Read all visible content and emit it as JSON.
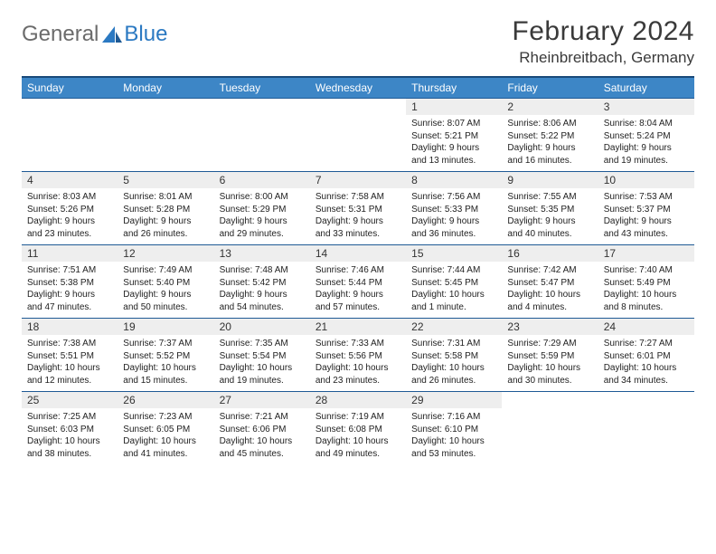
{
  "logo": {
    "general": "General",
    "blue": "Blue"
  },
  "title": "February 2024",
  "location": "Rheinbreitbach, Germany",
  "colors": {
    "header_bar": "#3d86c6",
    "header_top_border": "#194a7a",
    "row_border": "#1f5a95",
    "daynum_bg": "#eeeeee",
    "logo_gray": "#6b6b6b",
    "logo_blue": "#2b79c2"
  },
  "weekdays": [
    "Sunday",
    "Monday",
    "Tuesday",
    "Wednesday",
    "Thursday",
    "Friday",
    "Saturday"
  ],
  "weeks": [
    [
      {
        "n": "",
        "sr": "",
        "ss": "",
        "dl": ""
      },
      {
        "n": "",
        "sr": "",
        "ss": "",
        "dl": ""
      },
      {
        "n": "",
        "sr": "",
        "ss": "",
        "dl": ""
      },
      {
        "n": "",
        "sr": "",
        "ss": "",
        "dl": ""
      },
      {
        "n": "1",
        "sr": "Sunrise: 8:07 AM",
        "ss": "Sunset: 5:21 PM",
        "dl": "Daylight: 9 hours and 13 minutes."
      },
      {
        "n": "2",
        "sr": "Sunrise: 8:06 AM",
        "ss": "Sunset: 5:22 PM",
        "dl": "Daylight: 9 hours and 16 minutes."
      },
      {
        "n": "3",
        "sr": "Sunrise: 8:04 AM",
        "ss": "Sunset: 5:24 PM",
        "dl": "Daylight: 9 hours and 19 minutes."
      }
    ],
    [
      {
        "n": "4",
        "sr": "Sunrise: 8:03 AM",
        "ss": "Sunset: 5:26 PM",
        "dl": "Daylight: 9 hours and 23 minutes."
      },
      {
        "n": "5",
        "sr": "Sunrise: 8:01 AM",
        "ss": "Sunset: 5:28 PM",
        "dl": "Daylight: 9 hours and 26 minutes."
      },
      {
        "n": "6",
        "sr": "Sunrise: 8:00 AM",
        "ss": "Sunset: 5:29 PM",
        "dl": "Daylight: 9 hours and 29 minutes."
      },
      {
        "n": "7",
        "sr": "Sunrise: 7:58 AM",
        "ss": "Sunset: 5:31 PM",
        "dl": "Daylight: 9 hours and 33 minutes."
      },
      {
        "n": "8",
        "sr": "Sunrise: 7:56 AM",
        "ss": "Sunset: 5:33 PM",
        "dl": "Daylight: 9 hours and 36 minutes."
      },
      {
        "n": "9",
        "sr": "Sunrise: 7:55 AM",
        "ss": "Sunset: 5:35 PM",
        "dl": "Daylight: 9 hours and 40 minutes."
      },
      {
        "n": "10",
        "sr": "Sunrise: 7:53 AM",
        "ss": "Sunset: 5:37 PM",
        "dl": "Daylight: 9 hours and 43 minutes."
      }
    ],
    [
      {
        "n": "11",
        "sr": "Sunrise: 7:51 AM",
        "ss": "Sunset: 5:38 PM",
        "dl": "Daylight: 9 hours and 47 minutes."
      },
      {
        "n": "12",
        "sr": "Sunrise: 7:49 AM",
        "ss": "Sunset: 5:40 PM",
        "dl": "Daylight: 9 hours and 50 minutes."
      },
      {
        "n": "13",
        "sr": "Sunrise: 7:48 AM",
        "ss": "Sunset: 5:42 PM",
        "dl": "Daylight: 9 hours and 54 minutes."
      },
      {
        "n": "14",
        "sr": "Sunrise: 7:46 AM",
        "ss": "Sunset: 5:44 PM",
        "dl": "Daylight: 9 hours and 57 minutes."
      },
      {
        "n": "15",
        "sr": "Sunrise: 7:44 AM",
        "ss": "Sunset: 5:45 PM",
        "dl": "Daylight: 10 hours and 1 minute."
      },
      {
        "n": "16",
        "sr": "Sunrise: 7:42 AM",
        "ss": "Sunset: 5:47 PM",
        "dl": "Daylight: 10 hours and 4 minutes."
      },
      {
        "n": "17",
        "sr": "Sunrise: 7:40 AM",
        "ss": "Sunset: 5:49 PM",
        "dl": "Daylight: 10 hours and 8 minutes."
      }
    ],
    [
      {
        "n": "18",
        "sr": "Sunrise: 7:38 AM",
        "ss": "Sunset: 5:51 PM",
        "dl": "Daylight: 10 hours and 12 minutes."
      },
      {
        "n": "19",
        "sr": "Sunrise: 7:37 AM",
        "ss": "Sunset: 5:52 PM",
        "dl": "Daylight: 10 hours and 15 minutes."
      },
      {
        "n": "20",
        "sr": "Sunrise: 7:35 AM",
        "ss": "Sunset: 5:54 PM",
        "dl": "Daylight: 10 hours and 19 minutes."
      },
      {
        "n": "21",
        "sr": "Sunrise: 7:33 AM",
        "ss": "Sunset: 5:56 PM",
        "dl": "Daylight: 10 hours and 23 minutes."
      },
      {
        "n": "22",
        "sr": "Sunrise: 7:31 AM",
        "ss": "Sunset: 5:58 PM",
        "dl": "Daylight: 10 hours and 26 minutes."
      },
      {
        "n": "23",
        "sr": "Sunrise: 7:29 AM",
        "ss": "Sunset: 5:59 PM",
        "dl": "Daylight: 10 hours and 30 minutes."
      },
      {
        "n": "24",
        "sr": "Sunrise: 7:27 AM",
        "ss": "Sunset: 6:01 PM",
        "dl": "Daylight: 10 hours and 34 minutes."
      }
    ],
    [
      {
        "n": "25",
        "sr": "Sunrise: 7:25 AM",
        "ss": "Sunset: 6:03 PM",
        "dl": "Daylight: 10 hours and 38 minutes."
      },
      {
        "n": "26",
        "sr": "Sunrise: 7:23 AM",
        "ss": "Sunset: 6:05 PM",
        "dl": "Daylight: 10 hours and 41 minutes."
      },
      {
        "n": "27",
        "sr": "Sunrise: 7:21 AM",
        "ss": "Sunset: 6:06 PM",
        "dl": "Daylight: 10 hours and 45 minutes."
      },
      {
        "n": "28",
        "sr": "Sunrise: 7:19 AM",
        "ss": "Sunset: 6:08 PM",
        "dl": "Daylight: 10 hours and 49 minutes."
      },
      {
        "n": "29",
        "sr": "Sunrise: 7:16 AM",
        "ss": "Sunset: 6:10 PM",
        "dl": "Daylight: 10 hours and 53 minutes."
      },
      {
        "n": "",
        "sr": "",
        "ss": "",
        "dl": ""
      },
      {
        "n": "",
        "sr": "",
        "ss": "",
        "dl": ""
      }
    ]
  ]
}
